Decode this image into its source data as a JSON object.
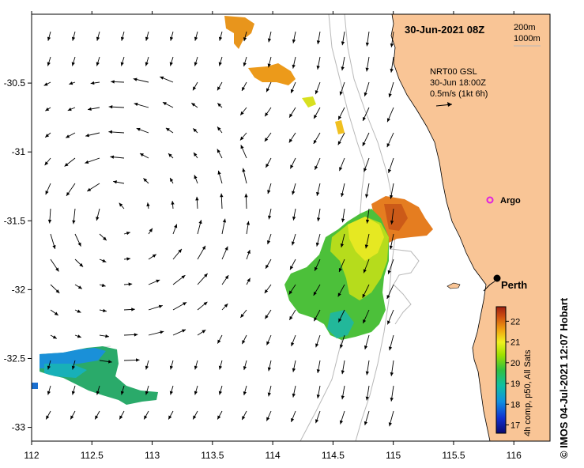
{
  "map": {
    "date_label": "30-Jun-2021 08Z",
    "isobaths": [
      "200m",
      "1000m"
    ],
    "current_source": [
      "NRT00 GSL",
      "30-Jun 18:00Z",
      "0.5m/s (1kt 6h)"
    ],
    "argo_label": "Argo",
    "city_label": "Perth",
    "x_ticks": [
      "112",
      "112.5",
      "113",
      "113.5",
      "114",
      "114.5",
      "115",
      "115.5",
      "116"
    ],
    "y_ticks": [
      "-30.5",
      "-31",
      "-31.5",
      "-32",
      "-32.5",
      "-33"
    ],
    "land_color": "#f9c596",
    "colorbar": {
      "ticks": [
        "17",
        "18",
        "19",
        "20",
        "21",
        "22"
      ],
      "label": "4h comp, p50, All Sats",
      "range": [
        16.6,
        22.7
      ]
    },
    "credit": "© IMOS 04-Jul-2021 12:07 Hobart"
  }
}
